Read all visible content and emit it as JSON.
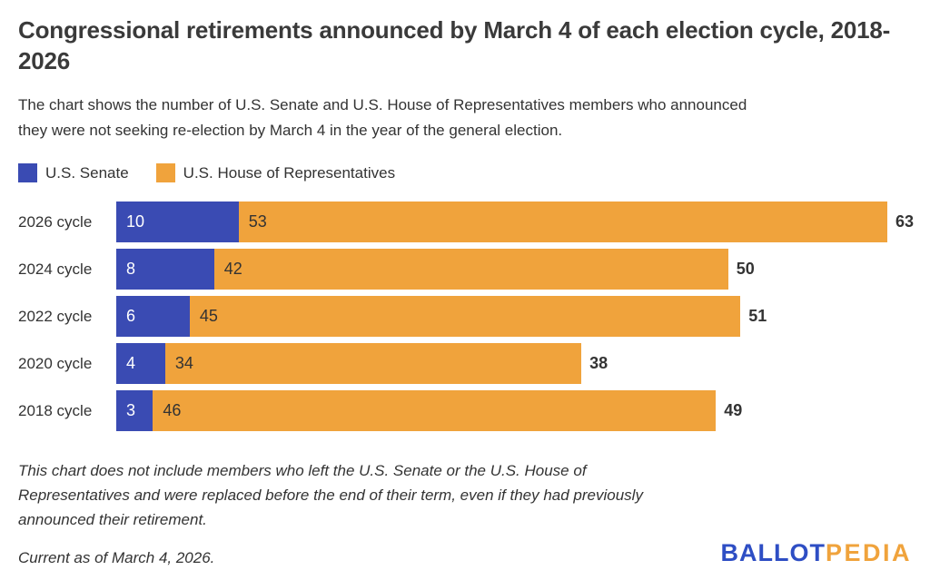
{
  "header": {
    "title": "Congressional retirements announced by March 4 of each election cycle, 2018-2026",
    "subtitle": "The chart shows the number of U.S. Senate and U.S. House of Representatives members who announced they were not seeking re-election by March 4 in the year of the general election."
  },
  "legend": [
    {
      "label": "U.S. Senate",
      "color": "#3a4bb3"
    },
    {
      "label": "U.S. House of Representatives",
      "color": "#f0a33c"
    }
  ],
  "chart_data": {
    "type": "bar",
    "orientation": "horizontal",
    "stacked": true,
    "title": "Congressional retirements announced by March 4 of each election cycle, 2018-2026",
    "categories": [
      "2026 cycle",
      "2024 cycle",
      "2022 cycle",
      "2020 cycle",
      "2018 cycle"
    ],
    "series": [
      {
        "name": "U.S. Senate",
        "color": "#3a4bb3",
        "values": [
          10,
          8,
          6,
          4,
          3
        ]
      },
      {
        "name": "U.S. House of Representatives",
        "color": "#f0a33c",
        "values": [
          53,
          42,
          45,
          34,
          46
        ]
      }
    ],
    "totals": [
      63,
      50,
      51,
      38,
      49
    ],
    "xlabel": "",
    "ylabel": "",
    "xlim": [
      0,
      63
    ],
    "grid": false,
    "legend_position": "top",
    "bar_value_labels": "inside-left",
    "total_labels": "right-of-bar"
  },
  "footer": {
    "note": "This chart does not include members who left the U.S. Senate or the U.S. House of Representatives and were replaced before the end of their term, even if they had previously announced their retirement.",
    "current_as_of": "Current as of March 4, 2026.",
    "logo": {
      "ballot_text": "BALLOT",
      "pedia_text": "PEDIA",
      "ballot_color": "#2e4ec4",
      "pedia_color": "#f0a33c"
    }
  },
  "colors": {
    "background": "#ffffff",
    "title_text": "#3a3a3a",
    "body_text": "#333333",
    "senate_bar": "#3a4bb3",
    "house_bar": "#f0a33c",
    "senate_bar_label": "#ffffff",
    "house_bar_label": "#333333"
  }
}
